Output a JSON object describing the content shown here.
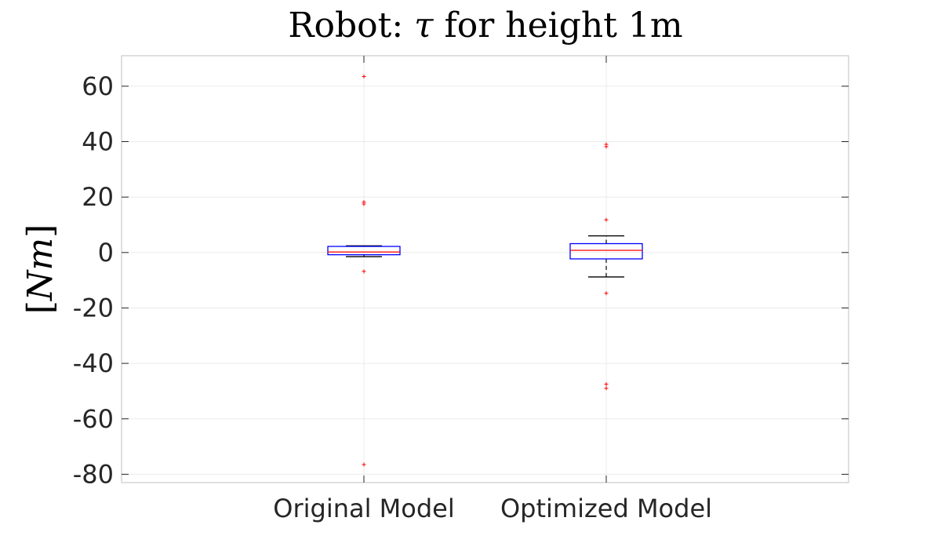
{
  "chart_data": {
    "type": "box",
    "title_prefix": "Robot: ",
    "title_symbol": "τ",
    "title_suffix": " for height 1m",
    "ylabel_open": "[",
    "ylabel_symbol": "Nm",
    "ylabel_close": "]",
    "xlabel": "",
    "ylim": [
      -83,
      71
    ],
    "yticks": [
      60,
      40,
      20,
      0,
      -20,
      -40,
      -60,
      -80
    ],
    "ytick_labels": [
      "60",
      "40",
      "20",
      "0",
      "-20",
      "-40",
      "-60",
      "-80"
    ],
    "grid": true,
    "categories": [
      "Original Model",
      "Optimized Model"
    ],
    "boxes": [
      {
        "name": "Original Model",
        "q1": -0.8,
        "median": 0.2,
        "q3": 2.2,
        "whisker_low": -1.5,
        "whisker_high": 2.4,
        "outliers": [
          63.5,
          18.2,
          17.5,
          -6.8,
          -76.5
        ]
      },
      {
        "name": "Optimized Model",
        "q1": -2.3,
        "median": 0.8,
        "q3": 3.2,
        "whisker_low": -8.8,
        "whisker_high": 6.0,
        "outliers": [
          39.0,
          38.2,
          11.8,
          -14.7,
          -47.5,
          -49.0
        ]
      }
    ],
    "colors": {
      "box": "#0000ff",
      "median": "#ff0000",
      "whisker": "#000000",
      "outlier": "#ff0000",
      "axis": "#bfbfbf",
      "grid": "#ebebeb",
      "text": "#262626"
    }
  }
}
